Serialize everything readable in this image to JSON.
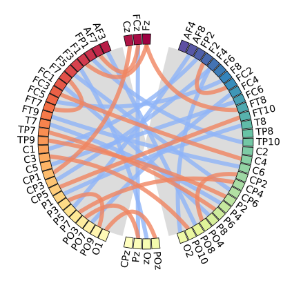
{
  "groups": [
    [
      "Fz",
      "FCz",
      "Cz"
    ],
    [
      "AF3",
      "AF7",
      "FP1",
      "F1",
      "F3",
      "F5",
      "F7",
      "FC1",
      "FC3",
      "FC5",
      "FT7",
      "FT9",
      "T7",
      "TP7",
      "TP9",
      "C1",
      "C3",
      "C5",
      "CP1",
      "CP3",
      "CP5",
      "P1",
      "P3",
      "P5",
      "P7",
      "PO3",
      "PO7",
      "PO9",
      "O1"
    ],
    [
      "CPz",
      "Pz",
      "Oz",
      "POz"
    ],
    [
      "O2",
      "PO10",
      "PO8",
      "PO4",
      "P8",
      "P6",
      "P4",
      "P2",
      "CP6",
      "CP4",
      "CP2",
      "C6",
      "C4",
      "C2",
      "TP10",
      "TP8",
      "T8",
      "FT10",
      "FT8",
      "FC6",
      "FC4",
      "FC2",
      "F8",
      "F6",
      "F4",
      "F2",
      "FP2",
      "AF8",
      "AF4"
    ]
  ]
}
